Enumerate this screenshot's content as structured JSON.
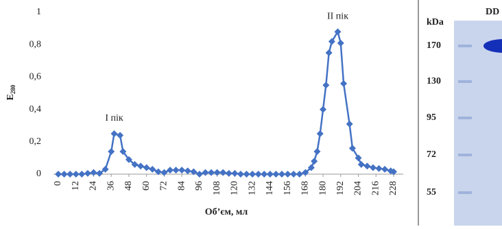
{
  "chart_data": {
    "type": "line",
    "ylabel": {
      "text": "E",
      "subscript": "280"
    },
    "xlabel": "Об’єм, мл",
    "color": "#4472c4",
    "x": [
      0,
      4,
      8,
      12,
      16,
      20,
      24,
      28,
      32,
      36,
      38,
      42,
      44,
      48,
      52,
      56,
      60,
      64,
      68,
      72,
      76,
      80,
      84,
      88,
      92,
      96,
      100,
      104,
      108,
      112,
      116,
      120,
      124,
      128,
      132,
      136,
      140,
      144,
      148,
      152,
      156,
      160,
      164,
      168,
      172,
      174,
      176,
      178,
      180,
      182,
      184,
      186,
      190,
      192,
      194,
      198,
      200,
      204,
      206,
      210,
      214,
      218,
      222,
      226,
      228
    ],
    "values": [
      0,
      0,
      0,
      0,
      0,
      0.005,
      0.01,
      0.005,
      0.03,
      0.14,
      0.25,
      0.24,
      0.14,
      0.09,
      0.06,
      0.05,
      0.04,
      0.03,
      0.015,
      0.01,
      0.025,
      0.025,
      0.025,
      0.02,
      0.015,
      0,
      0.01,
      0.01,
      0.01,
      0.01,
      0.005,
      0.005,
      0,
      0,
      0,
      0,
      0,
      0,
      0,
      0,
      0,
      0,
      0,
      0.01,
      0.04,
      0.08,
      0.14,
      0.25,
      0.4,
      0.55,
      0.75,
      0.82,
      0.88,
      0.81,
      0.56,
      0.31,
      0.16,
      0.1,
      0.06,
      0.05,
      0.04,
      0.035,
      0.03,
      0.02,
      0.015
    ],
    "xlim": [
      0,
      228
    ],
    "xticks": [
      0,
      12,
      24,
      36,
      48,
      60,
      72,
      84,
      96,
      108,
      120,
      132,
      144,
      156,
      168,
      180,
      192,
      204,
      216,
      228
    ],
    "ylim": [
      0,
      1
    ],
    "yticks": [
      0,
      {
        "value": 0.2,
        "label": "0,2"
      },
      {
        "value": 0.4,
        "label": "0,4"
      },
      {
        "value": 0.6,
        "label": "0,6"
      },
      {
        "value": 0.8,
        "label": "0,8"
      },
      1
    ],
    "annotations": [
      {
        "text": "I пік",
        "x": 38,
        "y": 0.25
      },
      {
        "text": "II пік",
        "x": 190,
        "y": 0.88
      }
    ]
  },
  "gel": {
    "unit_label": "kDa",
    "lane_label": "DD",
    "markers": [
      170,
      130,
      95,
      72,
      55
    ]
  }
}
